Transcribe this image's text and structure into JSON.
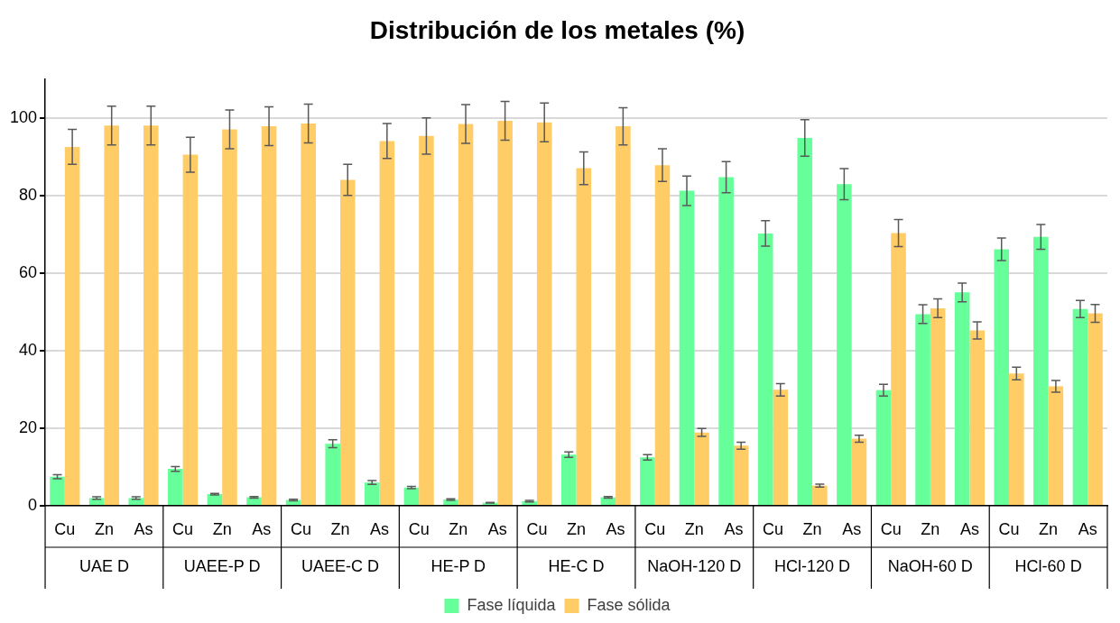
{
  "chart_data": {
    "type": "bar",
    "title": "Distribución de los metales (%)",
    "categories": [
      "Cu",
      "Zn",
      "As",
      "Cu",
      "Zn",
      "As",
      "Cu",
      "Zn",
      "As",
      "Cu",
      "Zn",
      "As",
      "Cu",
      "Zn",
      "As",
      "Cu",
      "Zn",
      "As",
      "Cu",
      "Zn",
      "As",
      "Cu",
      "Zn",
      "As",
      "Cu",
      "Zn",
      "As"
    ],
    "annotations": [
      "UAE D",
      "UAEE-P D",
      "UAEE-C D",
      "HE-P D",
      "HE-C D",
      "NaOH-120 D",
      "HCl-120 D",
      "NaOH-60 D",
      "HCl-60 D"
    ],
    "series": [
      {
        "name": "Fase líquida",
        "color": "#66ff99",
        "values": [
          7.5,
          2,
          2,
          9.5,
          3,
          2.2,
          1.5,
          16,
          6,
          4.7,
          1.6,
          0.8,
          1.2,
          13.2,
          2.2,
          12.5,
          81.2,
          84.7,
          70.2,
          94.8,
          82.9,
          29.8,
          49.4,
          55,
          66.1,
          69.3,
          50.7
        ],
        "errors": [
          0.5,
          0.3,
          0.3,
          0.6,
          0.2,
          0.2,
          0.2,
          1,
          0.5,
          0.3,
          0.2,
          0.1,
          0.2,
          0.7,
          0.2,
          0.7,
          3.8,
          4,
          3.3,
          4.7,
          4,
          1.5,
          2.4,
          2.4,
          2.9,
          3.2,
          2.2
        ]
      },
      {
        "name": "Fase sólida",
        "color": "#ffcc66",
        "values": [
          92.5,
          98,
          98,
          90.5,
          97,
          97.8,
          98.5,
          84,
          94,
          95.3,
          98.4,
          99.2,
          98.8,
          87,
          97.8,
          87.8,
          18.9,
          15.5,
          29.9,
          5.2,
          17.3,
          70.3,
          50.9,
          45.2,
          34.1,
          30.8,
          49.6
        ],
        "errors": [
          4.5,
          5,
          5,
          4.5,
          5,
          5,
          5,
          4,
          4.5,
          4.7,
          5,
          5,
          5,
          4.2,
          4.8,
          4.2,
          1,
          0.9,
          1.6,
          0.4,
          0.9,
          3.5,
          2.4,
          2.2,
          1.6,
          1.5,
          2.3
        ]
      }
    ],
    "ylim": [
      0,
      110
    ],
    "yticks": [
      0,
      20,
      40,
      60,
      80,
      100
    ],
    "grid": "y",
    "legend": "bottom"
  }
}
